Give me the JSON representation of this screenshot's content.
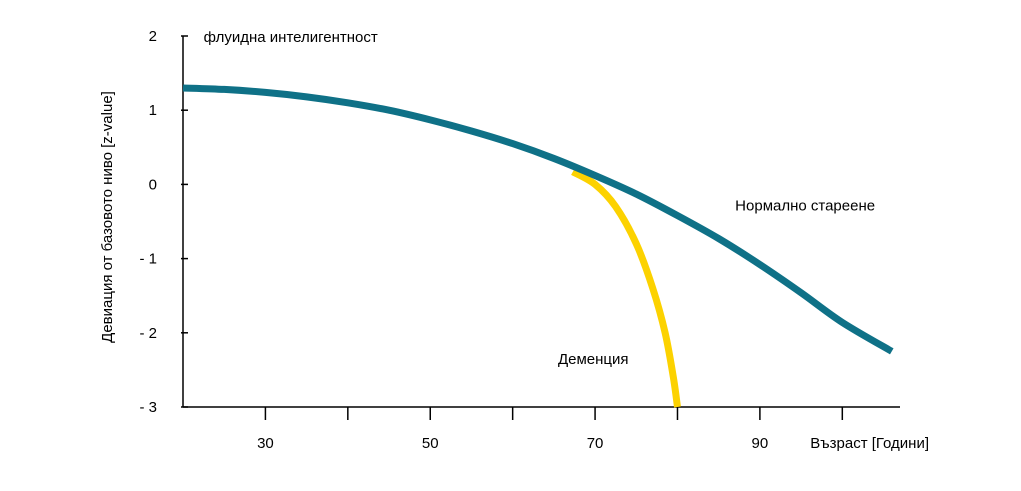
{
  "chart_data": {
    "type": "line",
    "title": "",
    "xlabel": "Възраст [Години]",
    "ylabel": "Девиация от базовото ниво [z-value]",
    "xlim": [
      20,
      107
    ],
    "ylim": [
      -3,
      2
    ],
    "x_ticks": [
      30,
      50,
      70,
      90
    ],
    "x_minor_ticks": [
      40,
      60,
      80,
      100
    ],
    "y_ticks": [
      2,
      1,
      0,
      -1,
      -2,
      -3
    ],
    "y_tick_labels": [
      "2",
      "1",
      "0",
      "- 1",
      "- 2",
      "- 3"
    ],
    "grid": false,
    "legend": "none",
    "annotations": [
      {
        "text": "флуидна интелигентност",
        "x": 22.5,
        "y": 1.92
      },
      {
        "text": "Нормално стареене",
        "x": 87,
        "y": -0.35
      },
      {
        "text": "Деменция",
        "x": 65.5,
        "y": -2.42
      }
    ],
    "series": [
      {
        "name": "Нормално стареене",
        "color": "#0f7187",
        "x": [
          20,
          25,
          30,
          35,
          40,
          45,
          50,
          55,
          60,
          65,
          70,
          75,
          80,
          85,
          90,
          95,
          100,
          106
        ],
        "y": [
          1.3,
          1.28,
          1.24,
          1.18,
          1.1,
          1.0,
          0.87,
          0.72,
          0.55,
          0.35,
          0.12,
          -0.13,
          -0.42,
          -0.73,
          -1.08,
          -1.46,
          -1.86,
          -2.25
        ]
      },
      {
        "name": "Деменция",
        "color": "#fcd200",
        "x": [
          67.3,
          70,
          72.5,
          75,
          77,
          78.5,
          79.5,
          80
        ],
        "y": [
          0.17,
          0.0,
          -0.3,
          -0.8,
          -1.4,
          -2.0,
          -2.6,
          -3.0
        ]
      }
    ]
  }
}
